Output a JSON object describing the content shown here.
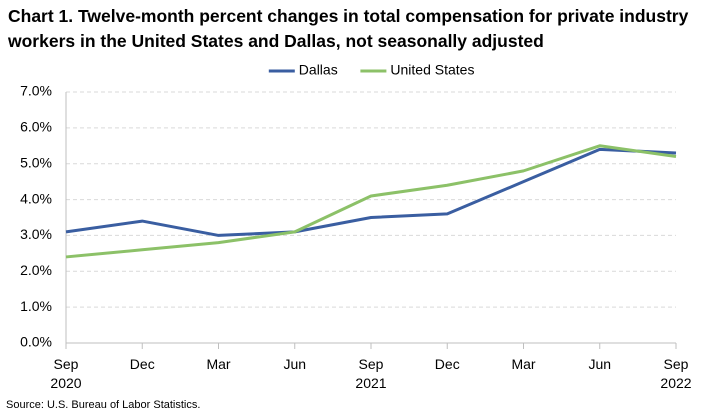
{
  "chart_data": {
    "type": "line",
    "title": "Chart 1. Twelve-month percent changes in total compensation for private industry workers in the United States and Dallas, not seasonally adjusted",
    "categories": [
      "Sep 2020",
      "Dec",
      "Mar",
      "Jun",
      "Sep 2021",
      "Dec",
      "Mar",
      "Jun",
      "Sep 2022"
    ],
    "series": [
      {
        "name": "Dallas",
        "color": "#3a5ea1",
        "values": [
          3.1,
          3.4,
          3.0,
          3.1,
          3.5,
          3.6,
          4.5,
          5.4,
          5.3
        ]
      },
      {
        "name": "United States",
        "color": "#8cc168",
        "values": [
          2.4,
          2.6,
          2.8,
          3.1,
          4.1,
          4.4,
          4.8,
          5.5,
          5.2
        ]
      }
    ],
    "ylim": [
      0,
      7
    ],
    "yticks": [
      {
        "value": 0,
        "label": "0.0%"
      },
      {
        "value": 1,
        "label": "1.0%"
      },
      {
        "value": 2,
        "label": "2.0%"
      },
      {
        "value": 3,
        "label": "3.0%"
      },
      {
        "value": 4,
        "label": "4.0%"
      },
      {
        "value": 5,
        "label": "5.0%"
      },
      {
        "value": 6,
        "label": "6.0%"
      },
      {
        "value": 7,
        "label": "7.0%"
      }
    ],
    "grid": true,
    "legend": "top",
    "source": "Source: U.S. Bureau of Labor Statistics."
  }
}
